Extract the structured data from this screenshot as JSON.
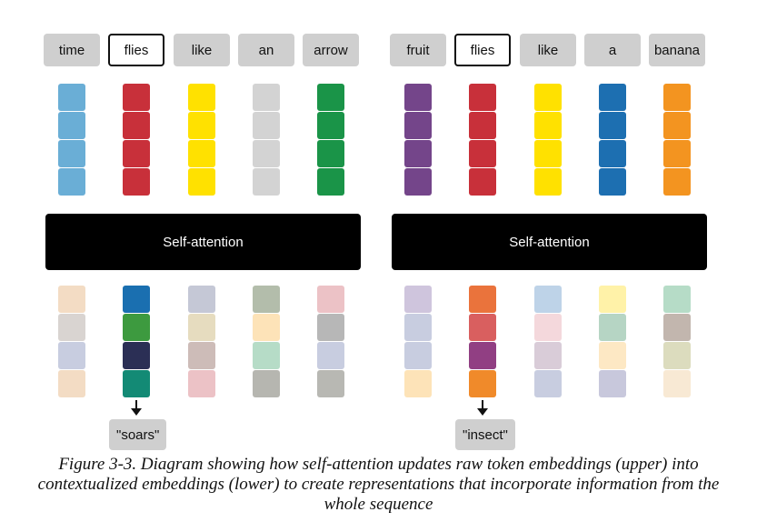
{
  "panels": [
    {
      "tokens": [
        "time",
        "flies",
        "like",
        "an",
        "arrow"
      ],
      "highlight_index": 1,
      "attention_label": "Self-attention",
      "raw_colors": [
        [
          "#6aaed6",
          "#6aaed6",
          "#6aaed6",
          "#6aaed6"
        ],
        [
          "#c8303a",
          "#c8303a",
          "#c8303a",
          "#c8303a"
        ],
        [
          "#ffe100",
          "#ffe100",
          "#ffe100",
          "#ffe100"
        ],
        [
          "#d3d3d3",
          "#d3d3d3",
          "#d3d3d3",
          "#d3d3d3"
        ],
        [
          "#1a9448",
          "#1a9448",
          "#1a9448",
          "#1a9448"
        ]
      ],
      "context_colors": [
        [
          "#f3dcc4",
          "#d9d4d1",
          "#c8cde0",
          "#f3dcc4"
        ],
        [
          "#1a6fb0",
          "#3d9a3f",
          "#2b2f55",
          "#138a75"
        ],
        [
          "#c5c8d6",
          "#e6dcbf",
          "#cdbcb8",
          "#ecc2c6"
        ],
        [
          "#b3bdab",
          "#fde3b8",
          "#b6dcc7",
          "#b6b6b0"
        ],
        [
          "#ecc2c6",
          "#b7b7b7",
          "#c8cde0",
          "#b8b8b3"
        ]
      ],
      "output_label": "\"soars\""
    },
    {
      "tokens": [
        "fruit",
        "flies",
        "like",
        "a",
        "banana"
      ],
      "highlight_index": 1,
      "attention_label": "Self-attention",
      "raw_colors": [
        [
          "#74458a",
          "#74458a",
          "#74458a",
          "#74458a"
        ],
        [
          "#c8303a",
          "#c8303a",
          "#c8303a",
          "#c8303a"
        ],
        [
          "#ffe100",
          "#ffe100",
          "#ffe100",
          "#ffe100"
        ],
        [
          "#1d6fb1",
          "#1d6fb1",
          "#1d6fb1",
          "#1d6fb1"
        ],
        [
          "#f39420",
          "#f39420",
          "#f39420",
          "#f39420"
        ]
      ],
      "context_colors": [
        [
          "#cfc5dd",
          "#c8cde0",
          "#c8cde0",
          "#fde3b8"
        ],
        [
          "#ea733c",
          "#d95f5f",
          "#913f83",
          "#f08a2a"
        ],
        [
          "#bed3e8",
          "#f4d8dc",
          "#d9ccd8",
          "#c8cde0"
        ],
        [
          "#fff2a8",
          "#b6d5c4",
          "#fde8c4",
          "#c8c8dc"
        ],
        [
          "#b6dcc7",
          "#c2b6ae",
          "#dcdcbe",
          "#f8e9d4"
        ]
      ],
      "output_label": "\"insect\""
    }
  ],
  "caption": "Figure 3-3. Diagram showing how self-attention updates raw token embeddings (upper) into contextualized embeddings (lower) to create representations that incorporate information from the whole sequence"
}
